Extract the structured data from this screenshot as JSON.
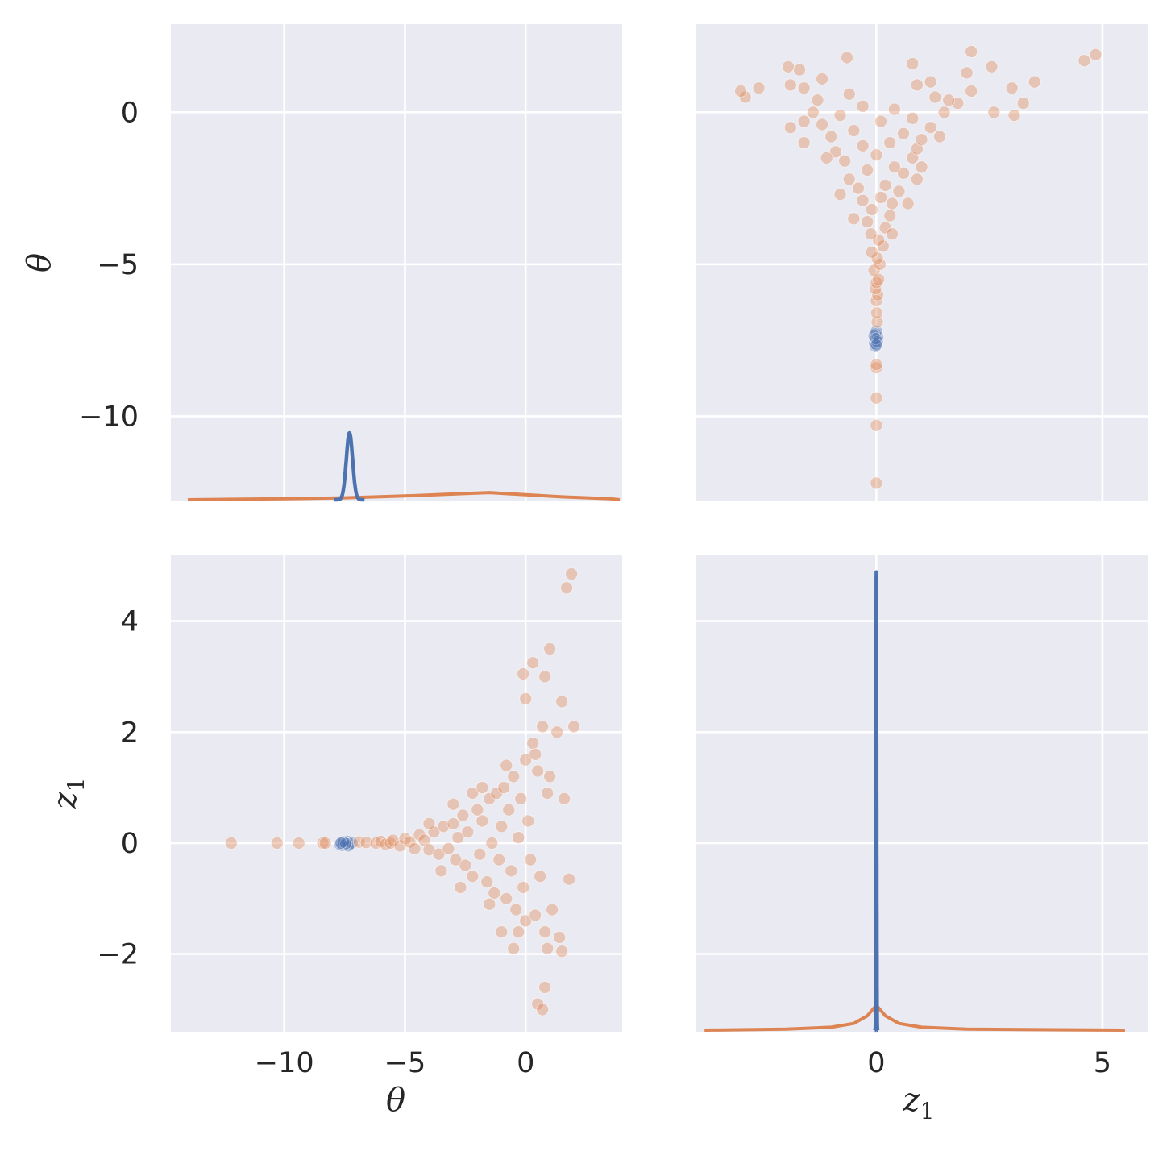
{
  "chart_data": {
    "type": "pairplot",
    "variables": [
      "theta",
      "z1"
    ],
    "labels": {
      "theta": "θ",
      "z1_base": "z",
      "z1_sub": "1"
    },
    "colors": {
      "blue": "#4c72b0",
      "orange": "#dd8452"
    },
    "axes": {
      "theta": {
        "lim": [
          -14.7,
          4.0
        ],
        "ticks": [
          -10,
          -5,
          0
        ],
        "tick_labels": [
          "−10",
          "−5",
          "0"
        ]
      },
      "theta_row": {
        "lim": [
          -12.8,
          2.9
        ],
        "ticks": [
          -10,
          -5,
          0
        ],
        "tick_labels": [
          "−10",
          "−5",
          "0"
        ]
      },
      "z1": {
        "lim": [
          -4.0,
          6.0
        ],
        "ticks": [
          0,
          5
        ],
        "tick_labels": [
          "0",
          "5"
        ]
      },
      "z1_row": {
        "lim": [
          -3.4,
          5.2
        ],
        "ticks": [
          -2,
          0,
          2,
          4
        ],
        "tick_labels": [
          "−2",
          "0",
          "2",
          "4"
        ]
      }
    },
    "grid": true,
    "diagonal": {
      "theta": {
        "blue_peak": {
          "center": -7.3,
          "sd": 0.13,
          "height_frac": 0.14
        },
        "orange_curve": {
          "x": [
            -14.0,
            -10,
            -7.5,
            -5,
            -3,
            -1.5,
            -0.5,
            1.5,
            3.5,
            3.9
          ],
          "height_frac": [
            0.0,
            0.002,
            0.004,
            0.008,
            0.012,
            0.015,
            0.012,
            0.006,
            0.002,
            0.0
          ]
        }
      },
      "z1": {
        "blue_peak": {
          "center": 0.0,
          "sd": 0.007,
          "height_frac": 0.96
        },
        "orange_curve": {
          "x": [
            -3.8,
            -2,
            -1,
            -0.5,
            -0.2,
            0,
            0.2,
            0.5,
            1,
            2,
            5.5
          ],
          "height_frac": [
            0.0,
            0.002,
            0.006,
            0.014,
            0.03,
            0.052,
            0.03,
            0.014,
            0.006,
            0.002,
            0.0
          ]
        }
      }
    },
    "series": [
      {
        "color": "blue",
        "points": [
          [
            -7.3,
            -0.02
          ],
          [
            -7.5,
            0.01
          ],
          [
            -7.6,
            -0.04
          ],
          [
            -7.4,
            0.03
          ],
          [
            -7.7,
            -0.02
          ],
          [
            -7.2,
            0.0
          ],
          [
            -7.35,
            -0.05
          ],
          [
            -7.55,
            0.02
          ],
          [
            -7.45,
            -0.01
          ],
          [
            -7.65,
            0.0
          ]
        ]
      },
      {
        "color": "orange",
        "points": [
          [
            -12.2,
            0.0
          ],
          [
            -10.3,
            0.0
          ],
          [
            -9.4,
            0.0
          ],
          [
            -8.4,
            0.0
          ],
          [
            -8.3,
            0.0
          ],
          [
            -6.9,
            0.02
          ],
          [
            -6.6,
            0.01
          ],
          [
            -6.2,
            0.0
          ],
          [
            -6.0,
            0.03
          ],
          [
            -5.8,
            -0.02
          ],
          [
            -5.6,
            0.0
          ],
          [
            -5.5,
            0.05
          ],
          [
            -5.2,
            -0.05
          ],
          [
            -5.0,
            0.08
          ],
          [
            -4.8,
            0.02
          ],
          [
            -4.6,
            -0.1
          ],
          [
            -4.4,
            0.15
          ],
          [
            -4.2,
            0.05
          ],
          [
            -4.0,
            -0.12
          ],
          [
            -3.8,
            0.2
          ],
          [
            -3.6,
            -0.2
          ],
          [
            -3.4,
            0.3
          ],
          [
            -3.2,
            -0.1
          ],
          [
            -3.0,
            0.35
          ],
          [
            -2.9,
            -0.3
          ],
          [
            -2.8,
            0.1
          ],
          [
            -2.6,
            0.5
          ],
          [
            -2.5,
            -0.4
          ],
          [
            -2.4,
            0.2
          ],
          [
            -2.2,
            -0.6
          ],
          [
            -2.0,
            0.6
          ],
          [
            -1.9,
            -0.2
          ],
          [
            -1.8,
            0.4
          ],
          [
            -1.6,
            -0.7
          ],
          [
            -1.5,
            0.8
          ],
          [
            -1.4,
            0.0
          ],
          [
            -1.3,
            -0.9
          ],
          [
            -1.2,
            0.9
          ],
          [
            -1.1,
            -0.3
          ],
          [
            -1.0,
            0.3
          ],
          [
            -0.9,
            1.0
          ],
          [
            -0.8,
            -1.0
          ],
          [
            -0.7,
            0.6
          ],
          [
            -0.6,
            -0.5
          ],
          [
            -0.5,
            1.2
          ],
          [
            -0.4,
            -1.2
          ],
          [
            -0.3,
            0.1
          ],
          [
            -0.2,
            0.8
          ],
          [
            -0.1,
            -0.8
          ],
          [
            0.0,
            1.5
          ],
          [
            0.0,
            -1.4
          ],
          [
            0.1,
            0.4
          ],
          [
            0.2,
            -0.3
          ],
          [
            0.3,
            1.8
          ],
          [
            0.4,
            -1.3
          ],
          [
            0.5,
            1.3
          ],
          [
            0.6,
            -0.6
          ],
          [
            0.7,
            2.1
          ],
          [
            0.8,
            -1.6
          ],
          [
            0.9,
            0.9
          ],
          [
            1.0,
            1.2
          ],
          [
            1.1,
            -1.2
          ],
          [
            1.3,
            2.0
          ],
          [
            1.4,
            -1.7
          ],
          [
            1.5,
            2.55
          ],
          [
            1.6,
            0.8
          ],
          [
            1.8,
            -0.65
          ],
          [
            2.0,
            2.1
          ],
          [
            -0.1,
            3.05
          ],
          [
            0.3,
            3.25
          ],
          [
            0.8,
            3.0
          ],
          [
            1.0,
            3.5
          ],
          [
            0.0,
            2.6
          ],
          [
            0.5,
            -2.9
          ],
          [
            0.7,
            -3.0
          ],
          [
            0.8,
            -2.6
          ],
          [
            1.7,
            4.6
          ],
          [
            1.9,
            4.85
          ],
          [
            -1.0,
            -1.6
          ],
          [
            -0.5,
            -1.9
          ],
          [
            0.9,
            -1.9
          ],
          [
            1.5,
            -1.95
          ],
          [
            -2.2,
            0.9
          ],
          [
            -1.8,
            1.0
          ],
          [
            -3.0,
            0.7
          ],
          [
            -3.5,
            -0.5
          ],
          [
            -4.0,
            0.35
          ],
          [
            -2.7,
            -0.8
          ],
          [
            -1.5,
            -1.1
          ],
          [
            -0.8,
            1.4
          ],
          [
            -0.3,
            -1.6
          ],
          [
            0.4,
            1.6
          ]
        ]
      }
    ]
  }
}
